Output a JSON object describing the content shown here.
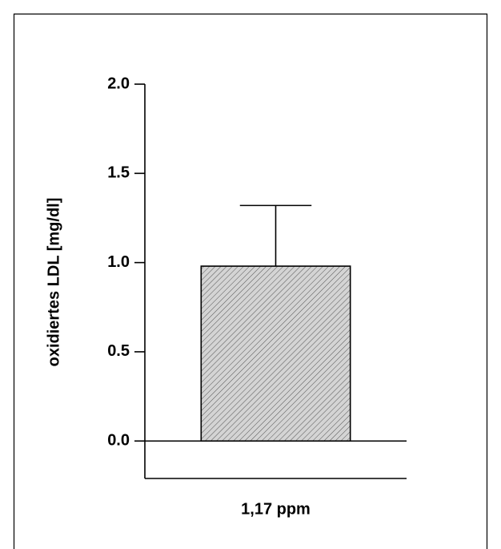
{
  "chart_data": {
    "type": "bar",
    "ylabel": "oxidiertes LDL [mg/dl]",
    "categories": [
      "1,17 ppm"
    ],
    "values": [
      0.98
    ],
    "errors": [
      0.34
    ],
    "color": "#c8c8c8",
    "ylim": [
      -0.21,
      2.0
    ],
    "yticks": [
      {
        "value": 0,
        "label": "0.0"
      },
      0.5,
      {
        "value": 1,
        "label": "1.0"
      },
      1.5,
      {
        "value": 2,
        "label": "2.0"
      }
    ]
  }
}
